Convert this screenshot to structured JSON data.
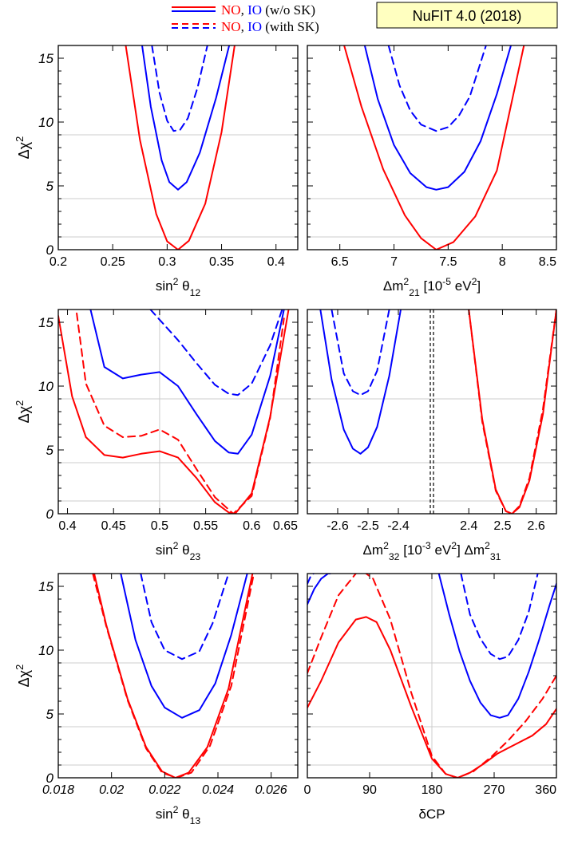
{
  "header": {
    "legend_row1": {
      "no": "NO",
      "sep": ", ",
      "io": "IO",
      "rest": " (w/o SK)"
    },
    "legend_row2": {
      "no": "NO",
      "sep": ", ",
      "io": "IO",
      "rest": " (with SK)"
    },
    "badge": "NuFIT 4.0 (2018)"
  },
  "colors": {
    "no": "#ff0000",
    "io": "#0000ff",
    "grid": "#cccccc",
    "badge_bg": "#ffffc0",
    "divider": "#000000"
  },
  "chart_data": [
    {
      "type": "line",
      "ylabel": "Δχ²",
      "xlabel": "sin² θ₁₂",
      "xlim": [
        0.2,
        0.42
      ],
      "ylim": [
        0,
        16
      ],
      "xticks": [
        "0.2",
        "0.25",
        "0.3",
        "0.35",
        "0.4"
      ],
      "xtick_values": [
        0.2,
        0.25,
        0.3,
        0.35,
        0.4
      ],
      "yticks": [
        "0",
        "5",
        "10",
        "15"
      ],
      "grid_y": [
        1,
        4,
        9
      ],
      "series": [
        {
          "curve": "NO w/o SK",
          "color": "#ff0000",
          "dash": false,
          "x": [
            0.262,
            0.275,
            0.29,
            0.3,
            0.31,
            0.32,
            0.335,
            0.35,
            0.362
          ],
          "y": [
            16,
            8.6,
            2.8,
            0.65,
            0,
            0.7,
            3.6,
            9.2,
            16
          ]
        },
        {
          "curve": "IO w/o SK",
          "color": "#0000ff",
          "dash": false,
          "x": [
            0.277,
            0.285,
            0.295,
            0.302,
            0.31,
            0.318,
            0.33,
            0.345,
            0.357
          ],
          "y": [
            16,
            11.2,
            7.0,
            5.3,
            4.7,
            5.3,
            7.6,
            11.9,
            16
          ]
        },
        {
          "curve": "IO with SK",
          "color": "#0000ff",
          "dash": true,
          "x": [
            0.286,
            0.293,
            0.3,
            0.306,
            0.312,
            0.319,
            0.328,
            0.337
          ],
          "y": [
            16,
            12.3,
            10.1,
            9.3,
            9.4,
            10.3,
            12.7,
            16
          ]
        }
      ]
    },
    {
      "type": "line",
      "ylabel": "",
      "xlabel": "Δm²₂₁ [10⁻⁵ eV²]",
      "xlim": [
        6.2,
        8.5
      ],
      "ylim": [
        0,
        16
      ],
      "xticks": [
        "6.5",
        "7",
        "7.5",
        "8",
        "8.5"
      ],
      "xtick_values": [
        6.5,
        7,
        7.5,
        8,
        8.5
      ],
      "yticks": [],
      "grid_y": [
        1,
        4,
        9
      ],
      "series": [
        {
          "curve": "NO w/o SK",
          "color": "#ff0000",
          "dash": false,
          "x": [
            6.54,
            6.7,
            6.9,
            7.1,
            7.25,
            7.39,
            7.55,
            7.75,
            7.95,
            8.2
          ],
          "y": [
            16,
            11.2,
            6.3,
            2.7,
            0.9,
            0,
            0.6,
            2.6,
            6.2,
            16
          ]
        },
        {
          "curve": "IO w/o SK",
          "color": "#0000ff",
          "dash": false,
          "x": [
            6.73,
            6.85,
            7.0,
            7.15,
            7.3,
            7.39,
            7.5,
            7.65,
            7.8,
            7.95,
            8.08
          ],
          "y": [
            16,
            11.8,
            8.2,
            6.0,
            4.9,
            4.7,
            4.9,
            6.1,
            8.5,
            12.2,
            16
          ]
        },
        {
          "curve": "IO with SK",
          "color": "#0000ff",
          "dash": true,
          "x": [
            6.95,
            7.05,
            7.15,
            7.25,
            7.39,
            7.5,
            7.6,
            7.7,
            7.85
          ],
          "y": [
            16,
            12.9,
            10.9,
            9.8,
            9.3,
            9.6,
            10.5,
            12.0,
            16
          ]
        }
      ]
    },
    {
      "type": "line",
      "ylabel": "Δχ²",
      "xlabel": "sin² θ₂₃",
      "xlim": [
        0.39,
        0.65
      ],
      "ylim": [
        0,
        16
      ],
      "xticks": [
        "0.4",
        "0.45",
        "0.5",
        "0.55",
        "0.6",
        "0.65"
      ],
      "xtick_values": [
        0.4,
        0.45,
        0.5,
        0.55,
        0.6,
        0.65
      ],
      "yticks": [
        "0",
        "5",
        "10",
        "15"
      ],
      "grid_y": [
        1,
        4,
        9
      ],
      "grid_x": [
        0.5
      ],
      "series": [
        {
          "curve": "NO w/o SK",
          "color": "#ff0000",
          "dash": false,
          "x": [
            0.39,
            0.405,
            0.42,
            0.44,
            0.46,
            0.48,
            0.5,
            0.52,
            0.54,
            0.56,
            0.575,
            0.582,
            0.6,
            0.62,
            0.64
          ],
          "y": [
            15.5,
            9.2,
            6.0,
            4.6,
            4.4,
            4.7,
            4.9,
            4.4,
            2.8,
            0.9,
            0.1,
            0,
            1.6,
            7.6,
            16
          ]
        },
        {
          "curve": "NO with SK",
          "color": "#ff0000",
          "dash": true,
          "x": [
            0.41,
            0.42,
            0.44,
            0.46,
            0.48,
            0.5,
            0.52,
            0.54,
            0.56,
            0.58,
            0.6,
            0.62,
            0.635
          ],
          "y": [
            15.7,
            10.2,
            6.9,
            6.0,
            6.1,
            6.6,
            5.8,
            3.5,
            1.3,
            0,
            1.4,
            7.5,
            15.3
          ]
        },
        {
          "curve": "IO w/o SK",
          "color": "#0000ff",
          "dash": false,
          "x": [
            0.425,
            0.44,
            0.46,
            0.48,
            0.5,
            0.52,
            0.54,
            0.56,
            0.575,
            0.585,
            0.6,
            0.62,
            0.635
          ],
          "y": [
            16,
            11.5,
            10.6,
            10.9,
            11.1,
            10.0,
            7.8,
            5.7,
            4.8,
            4.7,
            6.2,
            10.8,
            16
          ]
        },
        {
          "curve": "IO with SK",
          "color": "#0000ff",
          "dash": true,
          "x": [
            0.49,
            0.52,
            0.54,
            0.56,
            0.575,
            0.585,
            0.6,
            0.62,
            0.633
          ],
          "y": [
            16,
            13.6,
            11.8,
            10.1,
            9.4,
            9.3,
            10.2,
            13.2,
            16
          ]
        }
      ]
    },
    {
      "type": "line",
      "ylabel": "",
      "xlabel": "Δm²₃₂  [10⁻³ eV²]  Δm²₃₁",
      "ylim": [
        0,
        16
      ],
      "xticks": [
        "-2.6",
        "-2.5",
        "-2.4",
        "2.4",
        "2.5",
        "2.6"
      ],
      "xtick_values": [
        -2.6,
        -2.5,
        -2.4,
        2.4,
        2.5,
        2.6
      ],
      "xlim_left": [
        -2.7,
        -2.3
      ],
      "xlim_right": [
        2.3,
        2.66
      ],
      "yticks": [],
      "grid_y": [
        1,
        4,
        9
      ],
      "divider": "double dashed line at broken axis",
      "series": [
        {
          "curve": "NO w/o SK",
          "color": "#ff0000",
          "dash": false,
          "x": [
            2.4,
            2.44,
            2.48,
            2.51,
            2.528,
            2.55,
            2.58,
            2.62,
            2.66
          ],
          "y": [
            16,
            7.4,
            1.9,
            0.2,
            0,
            0.5,
            2.6,
            7.8,
            16
          ]
        },
        {
          "curve": "NO with SK",
          "color": "#ff0000",
          "dash": true,
          "x": [
            2.4,
            2.44,
            2.48,
            2.51,
            2.528,
            2.55,
            2.58,
            2.62,
            2.66
          ],
          "y": [
            16,
            7.2,
            1.8,
            0.2,
            0,
            0.6,
            2.8,
            8.2,
            16
          ]
        },
        {
          "curve": "IO w/o SK",
          "color": "#0000ff",
          "dash": false,
          "x": [
            -2.657,
            -2.62,
            -2.58,
            -2.55,
            -2.525,
            -2.5,
            -2.47,
            -2.43,
            -2.392
          ],
          "y": [
            16,
            10.5,
            6.6,
            5.1,
            4.7,
            5.2,
            6.8,
            10.8,
            16
          ]
        },
        {
          "curve": "IO with SK",
          "color": "#0000ff",
          "dash": true,
          "x": [
            -2.62,
            -2.58,
            -2.55,
            -2.525,
            -2.5,
            -2.47,
            -2.43
          ],
          "y": [
            16,
            11.0,
            9.6,
            9.3,
            9.6,
            11.2,
            16
          ]
        }
      ]
    },
    {
      "type": "line",
      "ylabel": "Δχ²",
      "xlabel": "sin² θ₁₃",
      "xlim": [
        0.018,
        0.027
      ],
      "ylim": [
        0,
        16
      ],
      "xticks": [
        "0.018",
        "0.02",
        "0.022",
        "0.024",
        "0.026"
      ],
      "xtick_values": [
        0.018,
        0.02,
        0.022,
        0.024,
        0.026
      ],
      "yticks": [
        "0",
        "5",
        "10",
        "15"
      ],
      "grid_y": [
        1,
        4,
        9
      ],
      "series": [
        {
          "curve": "NO w/o SK",
          "color": "#ff0000",
          "dash": false,
          "x": [
            0.01935,
            0.0198,
            0.0206,
            0.0213,
            0.0219,
            0.0224,
            0.0229,
            0.0236,
            0.0244,
            0.0253
          ],
          "y": [
            16,
            12.0,
            6.2,
            2.4,
            0.5,
            0,
            0.4,
            2.4,
            7.0,
            16
          ]
        },
        {
          "curve": "NO with SK",
          "color": "#ff0000",
          "dash": true,
          "x": [
            0.0193,
            0.0198,
            0.0206,
            0.0213,
            0.0219,
            0.02245,
            0.023,
            0.0237,
            0.0245,
            0.02535
          ],
          "y": [
            16,
            11.9,
            6.1,
            2.3,
            0.4,
            0,
            0.4,
            2.5,
            7.2,
            16
          ]
        },
        {
          "curve": "IO w/o SK",
          "color": "#0000ff",
          "dash": false,
          "x": [
            0.02035,
            0.0209,
            0.0215,
            0.022,
            0.02265,
            0.0233,
            0.0239,
            0.0245,
            0.0251
          ],
          "y": [
            16,
            10.8,
            7.2,
            5.5,
            4.7,
            5.3,
            7.4,
            11.2,
            16
          ]
        },
        {
          "curve": "IO with SK",
          "color": "#0000ff",
          "dash": true,
          "x": [
            0.0211,
            0.0215,
            0.022,
            0.02265,
            0.0233,
            0.0238,
            0.0244
          ],
          "y": [
            16,
            12.2,
            10.0,
            9.3,
            9.9,
            12.1,
            16
          ]
        }
      ]
    },
    {
      "type": "line",
      "ylabel": "",
      "xlabel": "δCP",
      "xlim": [
        0,
        360
      ],
      "ylim": [
        0,
        16
      ],
      "xticks": [
        "0",
        "90",
        "180",
        "270",
        "360"
      ],
      "xtick_values": [
        0,
        90,
        180,
        270,
        360
      ],
      "yticks": [],
      "grid_y": [
        1,
        4,
        9
      ],
      "grid_x": [
        180
      ],
      "series": [
        {
          "curve": "NO w/o SK",
          "color": "#ff0000",
          "dash": false,
          "x": [
            0,
            20,
            45,
            70,
            85,
            100,
            120,
            150,
            180,
            200,
            217,
            235,
            255,
            275,
            300,
            325,
            345,
            360
          ],
          "y": [
            5.5,
            7.6,
            10.6,
            12.4,
            12.6,
            12.2,
            10.0,
            5.6,
            1.5,
            0.3,
            0,
            0.4,
            1.1,
            1.9,
            2.6,
            3.3,
            4.2,
            5.4
          ]
        },
        {
          "curve": "NO with SK",
          "color": "#ff0000",
          "dash": true,
          "x": [
            0,
            20,
            45,
            70,
            80,
            95,
            120,
            150,
            180,
            200,
            217,
            240,
            265,
            290,
            315,
            340,
            360
          ],
          "y": [
            8.2,
            11.0,
            14.3,
            16,
            16.2,
            15.6,
            12.4,
            6.7,
            1.7,
            0.3,
            0,
            0.5,
            1.6,
            2.9,
            4.4,
            6.2,
            8.0
          ]
        },
        {
          "curve": "IO w/o SK",
          "color": "#0000ff",
          "dash": false,
          "x": [
            0,
            10,
            20,
            30,
            33
          ],
          "y": [
            13.6,
            14.8,
            15.6,
            16,
            16
          ]
        },
        {
          "curve": "IO w/o SK",
          "color": "#0000ff",
          "dash": false,
          "x": [
            190,
            205,
            220,
            235,
            250,
            265,
            278,
            290,
            305,
            320,
            335,
            350,
            360
          ],
          "y": [
            16,
            12.8,
            9.9,
            7.6,
            5.9,
            4.9,
            4.7,
            4.9,
            6.2,
            8.3,
            10.8,
            13.5,
            15.2
          ]
        },
        {
          "curve": "IO with SK",
          "color": "#0000ff",
          "dash": true,
          "x": [
            0,
            5,
            9
          ],
          "y": [
            15.2,
            15.8,
            16
          ]
        },
        {
          "curve": "IO with SK",
          "color": "#0000ff",
          "dash": true,
          "x": [
            222,
            235,
            250,
            265,
            278,
            290,
            305,
            320,
            333
          ],
          "y": [
            16,
            12.8,
            10.9,
            9.7,
            9.3,
            9.5,
            10.8,
            13.0,
            16
          ]
        }
      ]
    }
  ]
}
